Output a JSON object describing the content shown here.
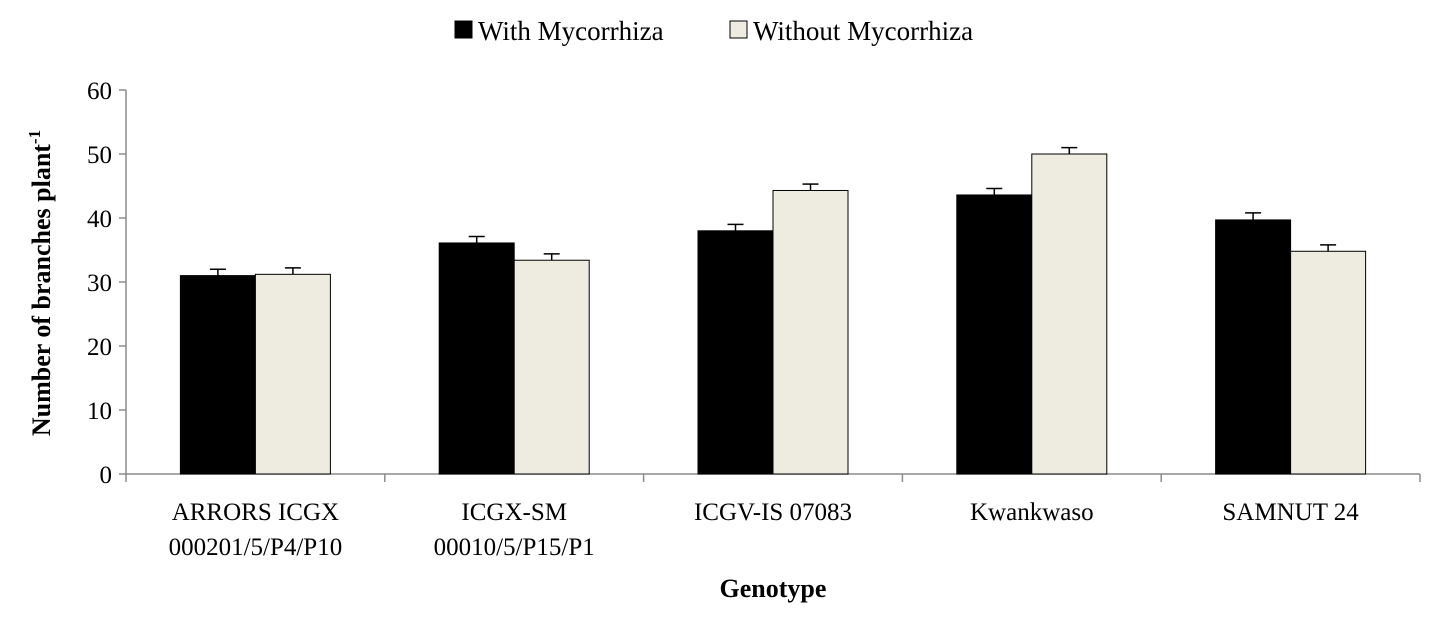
{
  "chart_data": {
    "type": "bar",
    "title": "",
    "xlabel": "Genotype",
    "ylabel": "Number of branches plant",
    "ylabel_superscript": "-1",
    "ylim": [
      0,
      60
    ],
    "yticks": [
      0,
      10,
      20,
      30,
      40,
      50,
      60
    ],
    "ytick_labels": [
      "0",
      "10",
      "20",
      "30",
      "40",
      "50",
      "60"
    ],
    "grid": false,
    "legend_position": "top-center",
    "categories": [
      [
        "ARRORS ICGX",
        "000201/5/P4/P10"
      ],
      [
        "ICGX-SM",
        "00010/5/P15/P1"
      ],
      [
        "ICGV-IS 07083"
      ],
      [
        "Kwankwaso"
      ],
      [
        "SAMNUT 24"
      ]
    ],
    "series": [
      {
        "name": "With Mycorrhiza",
        "color": "#000000",
        "values": [
          31.0,
          36.1,
          38.0,
          43.6,
          39.7
        ],
        "errors": [
          1.0,
          1.0,
          1.0,
          1.0,
          1.1
        ]
      },
      {
        "name": "Without Mycorrhiza",
        "color": "#eeece1",
        "values": [
          31.2,
          33.4,
          44.3,
          50.0,
          34.8
        ],
        "errors": [
          1.0,
          1.0,
          1.0,
          1.0,
          1.0
        ]
      }
    ]
  }
}
